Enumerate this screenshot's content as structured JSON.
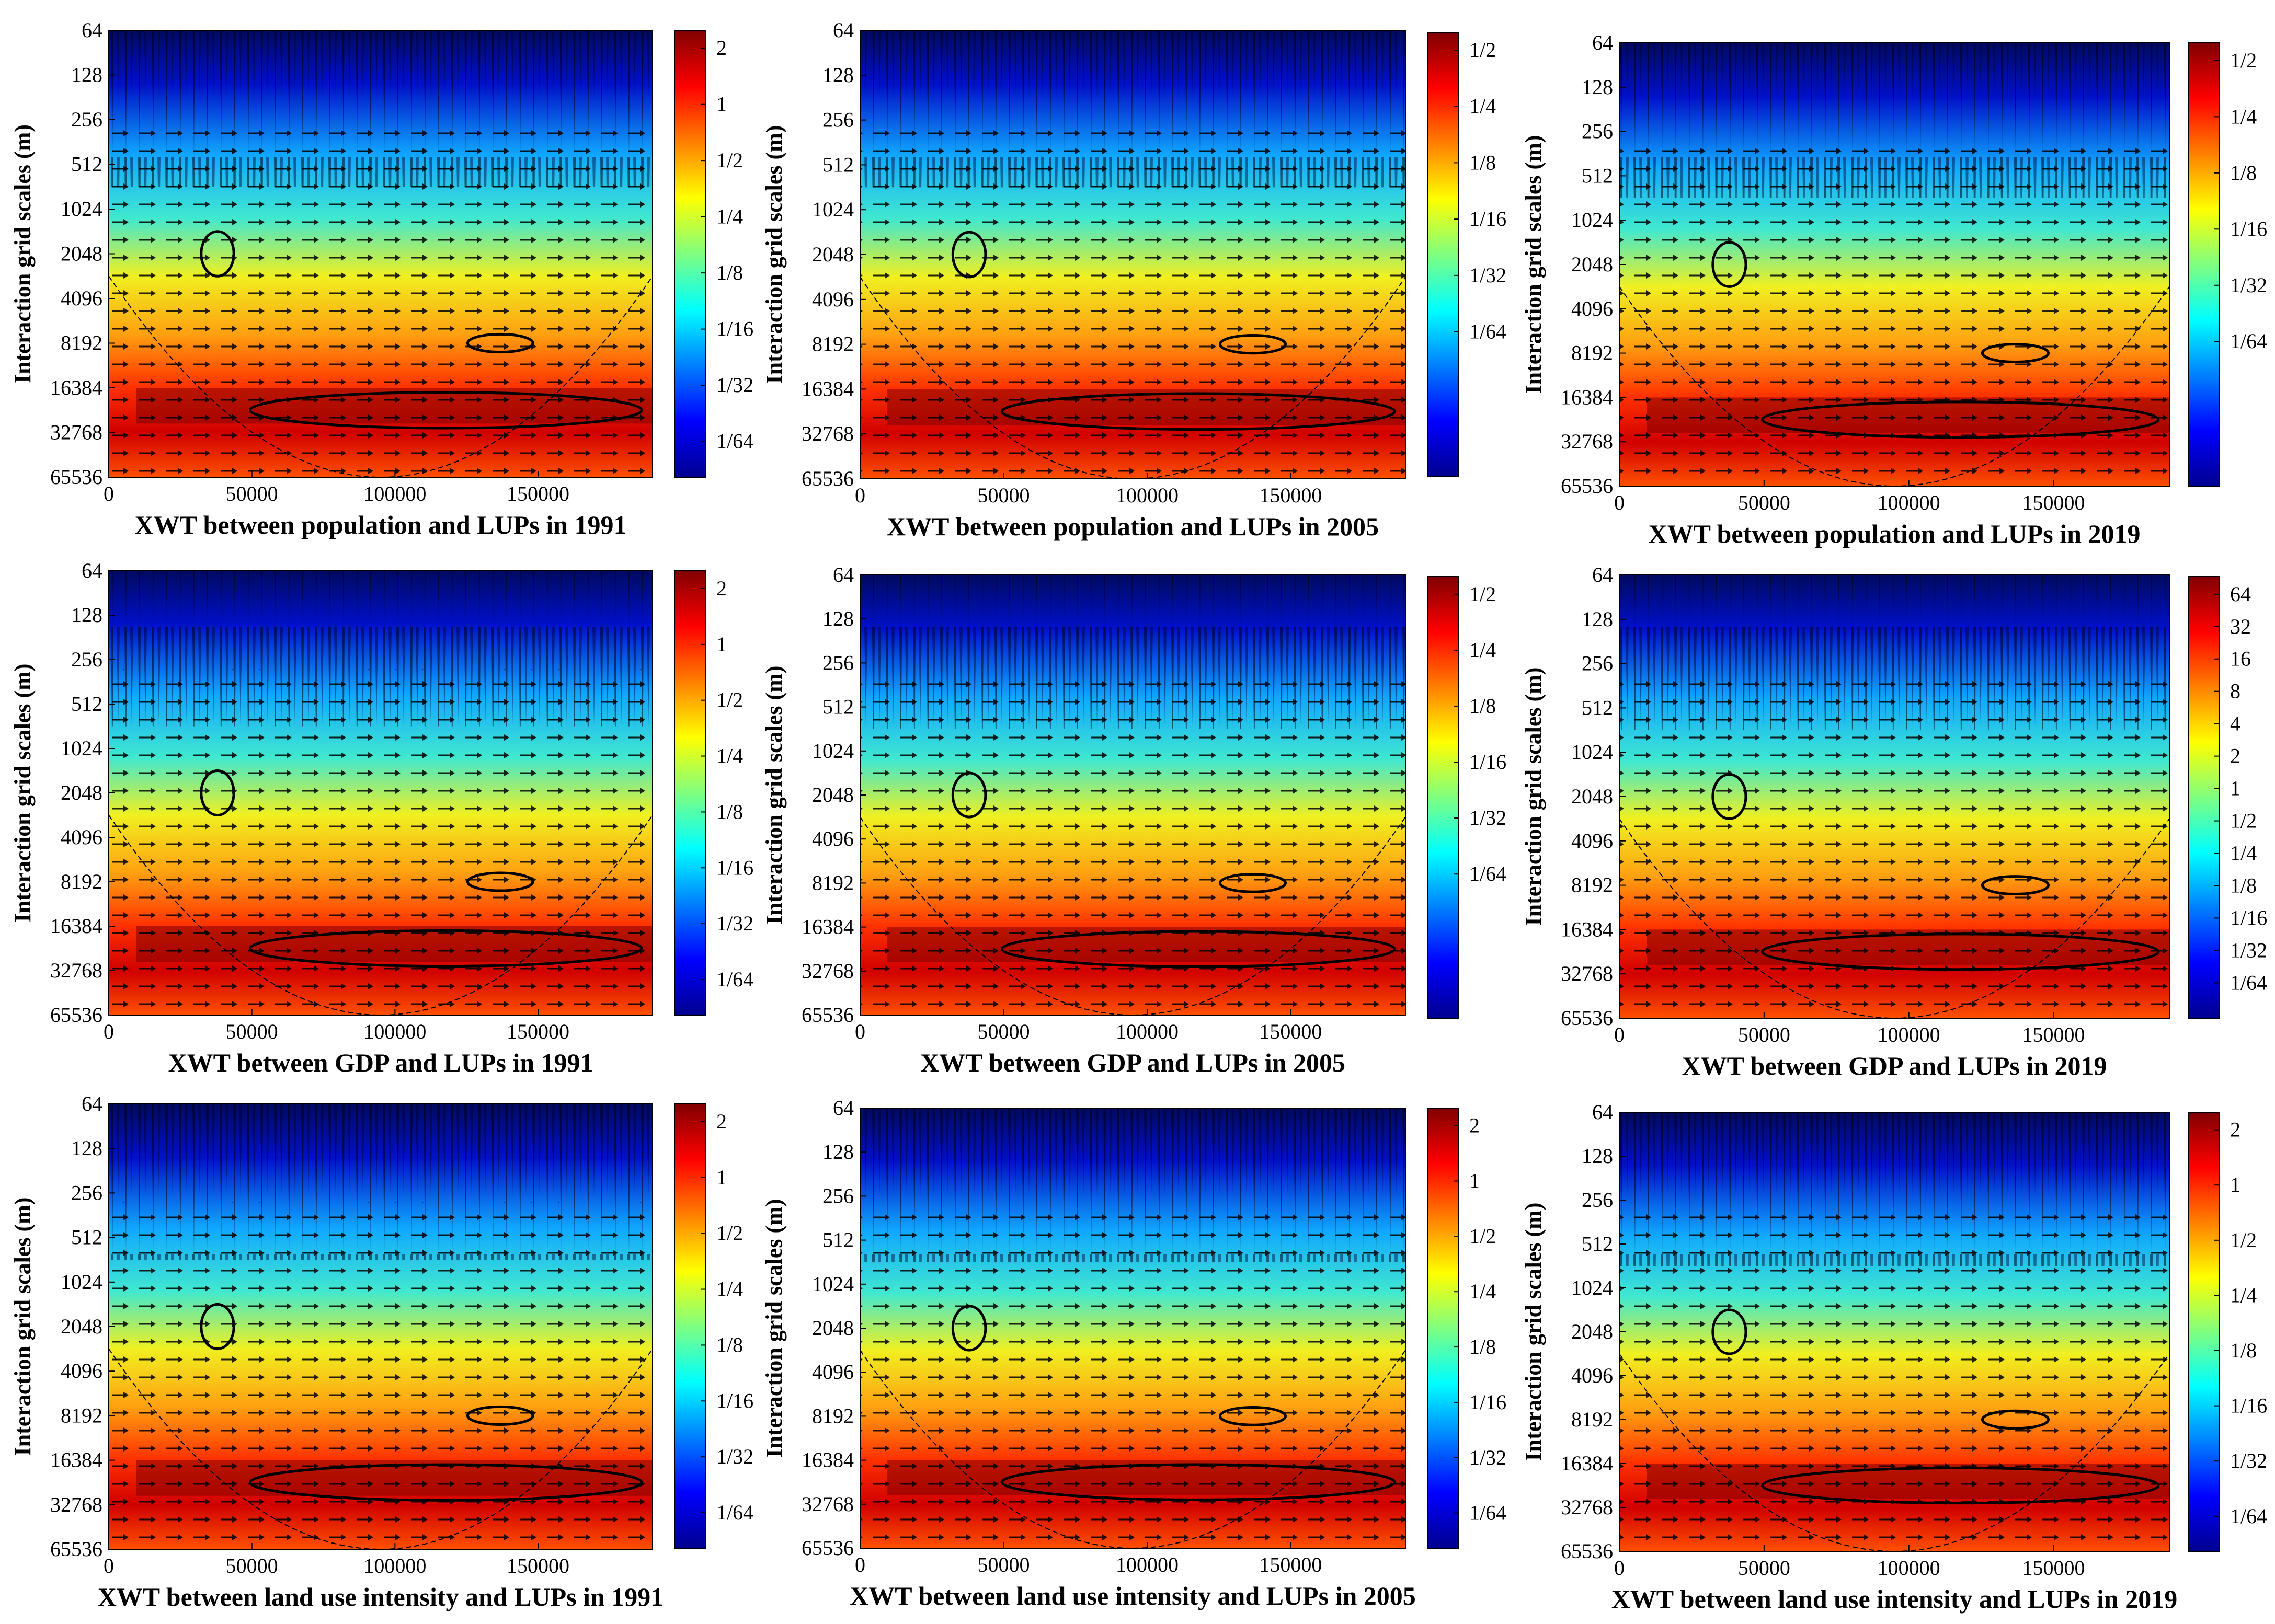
{
  "figure": {
    "ylabel": "Interaction grid scales (m)",
    "x_ticks": [
      0,
      50000,
      100000,
      150000
    ],
    "x_tick_labels": [
      "0",
      "50000",
      "100000",
      "150000"
    ],
    "xlim": [
      0,
      190000
    ],
    "y_ticks": [
      64,
      128,
      256,
      512,
      1024,
      2048,
      4096,
      8192,
      16384,
      32768,
      65536
    ],
    "y_tick_labels": [
      "64",
      "128",
      "256",
      "512",
      "1024",
      "2048",
      "4096",
      "8192",
      "16384",
      "32768",
      "65536"
    ],
    "colormap": "jet",
    "colors": {
      "cold": "#00008f",
      "cyan": "#00ffff",
      "yellow": "#ffff00",
      "red": "#ff0000",
      "hot": "#800000",
      "contour": "#000000",
      "arrow": "#000000"
    }
  },
  "chart_data": [
    {
      "type": "heatmap",
      "title": "XWT between population and LUPs in 1991",
      "ylabel": "Interaction grid scales (m)",
      "colorbar": {
        "labels": [
          "2",
          "1",
          "1/2",
          "1/4",
          "1/8",
          "1/16",
          "1/32",
          "1/64"
        ],
        "values": [
          2,
          1,
          0.5,
          0.25,
          0.125,
          0.0625,
          0.03125,
          0.015625
        ]
      }
    },
    {
      "type": "heatmap",
      "title": "XWT between population and LUPs in 2005",
      "ylabel": "Interaction grid scales (m)",
      "colorbar": {
        "labels": [
          "1/2",
          "1/4",
          "1/8",
          "1/16",
          "1/32",
          "1/64"
        ],
        "values": [
          0.5,
          0.25,
          0.125,
          0.0625,
          0.03125,
          0.015625
        ]
      }
    },
    {
      "type": "heatmap",
      "title": "XWT between population and LUPs in 2019",
      "ylabel": "Interaction grid scales (m)",
      "colorbar": {
        "labels": [
          "1/2",
          "1/4",
          "1/8",
          "1/16",
          "1/32",
          "1/64"
        ],
        "values": [
          0.5,
          0.25,
          0.125,
          0.0625,
          0.03125,
          0.015625
        ]
      }
    },
    {
      "type": "heatmap",
      "title": "XWT between GDP and LUPs in 1991",
      "ylabel": "Interaction grid scales (m)",
      "colorbar": {
        "labels": [
          "2",
          "1",
          "1/2",
          "1/4",
          "1/8",
          "1/16",
          "1/32",
          "1/64"
        ],
        "values": [
          2,
          1,
          0.5,
          0.25,
          0.125,
          0.0625,
          0.03125,
          0.015625
        ]
      }
    },
    {
      "type": "heatmap",
      "title": "XWT between GDP and LUPs in 2005",
      "ylabel": "Interaction grid scales (m)",
      "colorbar": {
        "labels": [
          "1/2",
          "1/4",
          "1/8",
          "1/16",
          "1/32",
          "1/64"
        ],
        "values": [
          0.5,
          0.25,
          0.125,
          0.0625,
          0.03125,
          0.015625
        ]
      }
    },
    {
      "type": "heatmap",
      "title": "XWT between GDP and LUPs in 2019",
      "ylabel": "Interaction grid scales (m)",
      "colorbar": {
        "labels": [
          "64",
          "32",
          "16",
          "8",
          "4",
          "2",
          "1",
          "1/2",
          "1/4",
          "1/8",
          "1/16",
          "1/32",
          "1/64"
        ],
        "values": [
          64,
          32,
          16,
          8,
          4,
          2,
          1,
          0.5,
          0.25,
          0.125,
          0.0625,
          0.03125,
          0.015625
        ]
      }
    },
    {
      "type": "heatmap",
      "title": "XWT between land use intensity and LUPs in 1991",
      "ylabel": "Interaction grid scales (m)",
      "colorbar": {
        "labels": [
          "2",
          "1",
          "1/2",
          "1/4",
          "1/8",
          "1/16",
          "1/32",
          "1/64"
        ],
        "values": [
          2,
          1,
          0.5,
          0.25,
          0.125,
          0.0625,
          0.03125,
          0.015625
        ]
      }
    },
    {
      "type": "heatmap",
      "title": "XWT between land use intensity and LUPs in 2005",
      "ylabel": "Interaction grid scales (m)",
      "colorbar": {
        "labels": [
          "2",
          "1",
          "1/2",
          "1/4",
          "1/8",
          "1/16",
          "1/32",
          "1/64"
        ],
        "values": [
          2,
          1,
          0.5,
          0.25,
          0.125,
          0.0625,
          0.03125,
          0.015625
        ]
      }
    },
    {
      "type": "heatmap",
      "title": "XWT between land use intensity and LUPs in 2019",
      "ylabel": "Interaction grid scales (m)",
      "colorbar": {
        "labels": [
          "2",
          "1",
          "1/2",
          "1/4",
          "1/8",
          "1/16",
          "1/32",
          "1/64"
        ],
        "values": [
          2,
          1,
          0.5,
          0.25,
          0.125,
          0.0625,
          0.03125,
          0.015625
        ]
      }
    }
  ]
}
